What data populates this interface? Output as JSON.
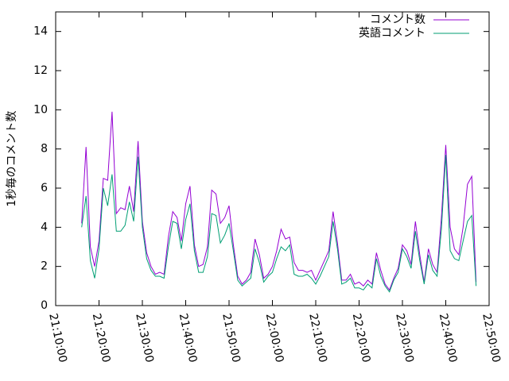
{
  "chart_data": {
    "type": "line",
    "ylabel": "1秒毎のコメント数",
    "x": [
      "21:16:00",
      "21:17:00",
      "21:18:00",
      "21:19:00",
      "21:20:00",
      "21:21:00",
      "21:22:00",
      "21:23:00",
      "21:24:00",
      "21:25:00",
      "21:26:00",
      "21:27:00",
      "21:28:00",
      "21:29:00",
      "21:30:00",
      "21:31:00",
      "21:32:00",
      "21:33:00",
      "21:34:00",
      "21:35:00",
      "21:36:00",
      "21:37:00",
      "21:38:00",
      "21:39:00",
      "21:40:00",
      "21:41:00",
      "21:42:00",
      "21:43:00",
      "21:44:00",
      "21:45:00",
      "21:46:00",
      "21:47:00",
      "21:48:00",
      "21:49:00",
      "21:50:00",
      "21:51:00",
      "21:52:00",
      "21:53:00",
      "21:54:00",
      "21:55:00",
      "21:56:00",
      "21:57:00",
      "21:58:00",
      "21:59:00",
      "22:00:00",
      "22:01:00",
      "22:02:00",
      "22:03:00",
      "22:04:00",
      "22:05:00",
      "22:06:00",
      "22:07:00",
      "22:08:00",
      "22:09:00",
      "22:10:00",
      "22:11:00",
      "22:12:00",
      "22:13:00",
      "22:14:00",
      "22:15:00",
      "22:16:00",
      "22:17:00",
      "22:18:00",
      "22:19:00",
      "22:20:00",
      "22:21:00",
      "22:22:00",
      "22:23:00",
      "22:24:00",
      "22:25:00",
      "22:26:00",
      "22:27:00",
      "22:28:00",
      "22:29:00",
      "22:30:00",
      "22:31:00",
      "22:32:00",
      "22:33:00",
      "22:34:00",
      "22:35:00",
      "22:36:00",
      "22:37:00",
      "22:38:00",
      "22:39:00",
      "22:40:00",
      "22:41:00",
      "22:42:00",
      "22:43:00",
      "22:44:00",
      "22:45:00",
      "22:46:00",
      "22:47:00"
    ],
    "series": [
      {
        "name": "コメント数",
        "color": "#9400d3",
        "values": [
          4.2,
          8.1,
          3.0,
          2.0,
          3.3,
          6.5,
          6.4,
          9.9,
          4.7,
          5.0,
          4.9,
          6.1,
          4.8,
          8.4,
          4.3,
          2.7,
          2.0,
          1.6,
          1.7,
          1.6,
          3.5,
          4.8,
          4.5,
          3.3,
          5.2,
          6.1,
          3.1,
          2.0,
          2.1,
          3.0,
          5.9,
          5.7,
          4.2,
          4.5,
          5.1,
          3.1,
          1.5,
          1.1,
          1.3,
          1.7,
          3.4,
          2.6,
          1.4,
          1.6,
          2.0,
          2.8,
          3.9,
          3.4,
          3.5,
          2.2,
          1.8,
          1.8,
          1.7,
          1.8,
          1.3,
          1.8,
          2.3,
          2.8,
          4.8,
          3.2,
          1.3,
          1.3,
          1.6,
          1.1,
          1.2,
          1.0,
          1.3,
          1.1,
          2.7,
          1.8,
          1.1,
          0.8,
          1.4,
          1.9,
          3.1,
          2.8,
          2.1,
          4.3,
          2.6,
          1.2,
          2.9,
          2.1,
          1.7,
          4.5,
          8.2,
          4.0,
          2.9,
          2.6,
          4.0,
          6.2,
          6.6,
          1.2
        ]
      },
      {
        "name": "英語コメント",
        "color": "#009e73",
        "values": [
          4.0,
          5.6,
          2.3,
          1.4,
          2.9,
          6.0,
          5.1,
          6.7,
          3.8,
          3.8,
          4.1,
          5.3,
          4.3,
          7.6,
          4.0,
          2.4,
          1.8,
          1.5,
          1.5,
          1.4,
          3.0,
          4.3,
          4.2,
          2.9,
          4.4,
          5.2,
          2.8,
          1.7,
          1.7,
          2.5,
          4.7,
          4.6,
          3.2,
          3.6,
          4.2,
          2.8,
          1.3,
          1.0,
          1.2,
          1.4,
          2.9,
          2.2,
          1.2,
          1.5,
          1.7,
          2.4,
          3.0,
          2.8,
          3.1,
          1.6,
          1.5,
          1.5,
          1.6,
          1.4,
          1.1,
          1.5,
          2.0,
          2.5,
          4.3,
          2.9,
          1.1,
          1.2,
          1.4,
          0.9,
          0.9,
          0.8,
          1.1,
          0.9,
          2.4,
          1.5,
          1.0,
          0.7,
          1.3,
          1.7,
          2.9,
          2.5,
          1.9,
          3.8,
          2.3,
          1.1,
          2.6,
          1.8,
          1.5,
          3.9,
          7.7,
          2.8,
          2.4,
          2.3,
          3.3,
          4.3,
          4.6,
          1.0
        ]
      }
    ],
    "xlim": [
      "21:10:00",
      "22:50:00"
    ],
    "xticks": [
      "21:10:00",
      "21:20:00",
      "21:30:00",
      "21:40:00",
      "21:50:00",
      "22:00:00",
      "22:10:00",
      "22:20:00",
      "22:30:00",
      "22:40:00",
      "22:50:00"
    ],
    "ylim": [
      0,
      15
    ],
    "yticks": [
      0,
      2,
      4,
      6,
      8,
      10,
      12,
      14
    ],
    "legend": "top-right"
  }
}
